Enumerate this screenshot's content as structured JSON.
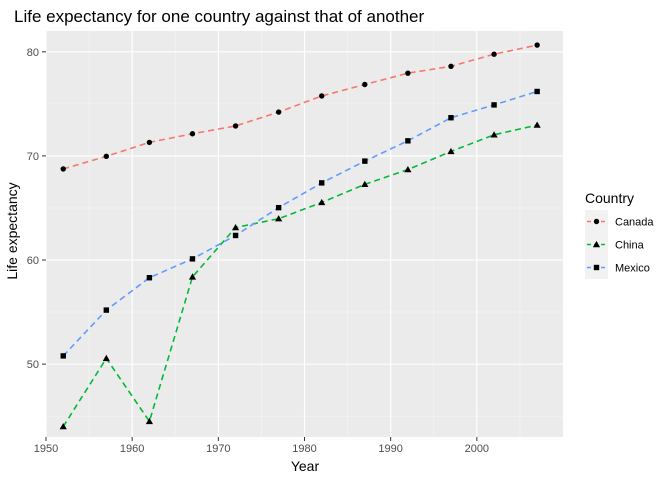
{
  "chart_data": {
    "type": "line",
    "title": "Life expectancy for one country against that of another",
    "xlabel": "Year",
    "ylabel": "Life expectancy",
    "xlim": [
      1950,
      2010
    ],
    "ylim": [
      43,
      82
    ],
    "x_ticks": [
      1950,
      1960,
      1970,
      1980,
      1990,
      2000
    ],
    "y_ticks": [
      50,
      60,
      70,
      80
    ],
    "grid": true,
    "legend": {
      "title": "Country",
      "position": "right"
    },
    "x": [
      1952,
      1957,
      1962,
      1967,
      1972,
      1977,
      1982,
      1987,
      1992,
      1997,
      2002,
      2007
    ],
    "series": [
      {
        "name": "Canada",
        "color": "#F8766D",
        "marker": "circle",
        "values": [
          68.75,
          69.96,
          71.3,
          72.13,
          72.88,
          74.21,
          75.76,
          76.86,
          77.95,
          78.61,
          79.77,
          80.65
        ]
      },
      {
        "name": "China",
        "color": "#00BA38",
        "marker": "triangle",
        "values": [
          44.0,
          50.55,
          44.5,
          58.38,
          63.12,
          63.97,
          65.53,
          67.27,
          68.69,
          70.43,
          72.03,
          72.96
        ]
      },
      {
        "name": "Mexico",
        "color": "#619CFF",
        "marker": "square",
        "values": [
          50.79,
          55.19,
          58.3,
          60.11,
          62.36,
          65.03,
          67.41,
          69.5,
          71.45,
          73.67,
          74.9,
          76.19
        ]
      }
    ]
  }
}
